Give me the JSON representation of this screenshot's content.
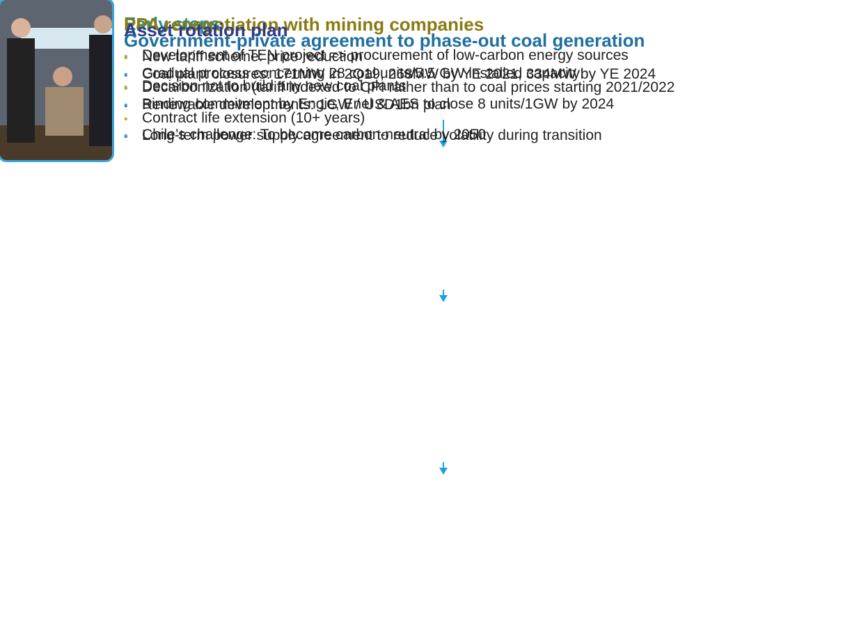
{
  "panels": [
    {
      "title": "Early steps",
      "bullets": [
        "Development of TEN project => procurement of low-carbon energy sources",
        "Decision not to build any new coal plants"
      ]
    },
    {
      "title": "PPA renegotiation with mining companies",
      "bullets": [
        "New tariff scheme: price reduction",
        "Decarbonization (tariff indexed to CPI rather than to coal prices starting 2021/2022",
        "Contract life extension (10+ years)"
      ]
    },
    {
      "title": "Asset rotation plan",
      "bullets": [
        "Coal plant closures: 171MW in 2Q19, 268MW by YE 2021, 334MW by YE 2024",
        "Renewable developments: 1GW / USD1bn plan",
        "Long-term power supply agreement to reduce volatility during transition"
      ]
    },
    {
      "title": "Government-private agreement to phase-out coal generation",
      "bullets": [
        "Gradual process concerning 28 coal units/5.5 GW installed capacity:",
        "Binding commitment by Engie, Enel & AES to close 8 units/1GW by 2024",
        "Chile’s challenge: To become carbon-neutral by 2050"
      ]
    }
  ]
}
